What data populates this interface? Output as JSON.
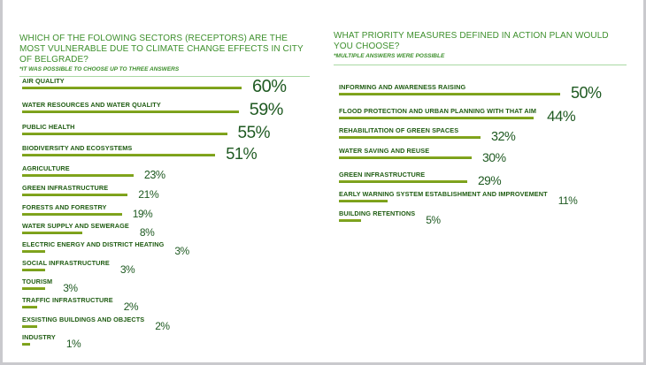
{
  "chart_data": [
    {
      "type": "bar",
      "orientation": "horizontal",
      "title": "WHICH OF THE FOLOWING SECTORS (RECEPTORS) ARE THE MOST VULNERABLE DUE TO CLIMATE CHANGE EFFECTS IN CITY OF BELGRADE?",
      "subtitle": "*IT WAS POSSIBLE TO CHOOSE  UP TO THREE ANSWERS",
      "unit": "%",
      "categories": [
        "AIR QUALITY",
        "WATER RESOURCES AND WATER QUALITY",
        "PUBLIC HEALTH",
        "BIODIVERSITY AND ECOSYSTEMS",
        "AGRICULTURE",
        "GREEN INFRASTRUCTURE",
        "FORESTS AND FORESTRY",
        "WATER SUPPLY AND SEWERAGE",
        "ELECTRIC ENERGY AND DISTRICT HEATING",
        "SOCIAL INFRASTRUCTURE",
        "TOURISM",
        "TRAFFIC INFRASTRUCTURE",
        "EXSISTING BUILDINGS AND OBJECTS",
        "INDUSTRY"
      ],
      "values": [
        60,
        59,
        55,
        51,
        23,
        21,
        19,
        8,
        3,
        3,
        3,
        2,
        2,
        1
      ],
      "labels": [
        "60%",
        "59%",
        "55%",
        "51%",
        "23%",
        "21%",
        "19%",
        "8%",
        "3%",
        "3%",
        "3%",
        "2%",
        "2%",
        "1%"
      ],
      "bar_color": "#6f9a18",
      "text_color": "#1f5c12"
    },
    {
      "type": "bar",
      "orientation": "horizontal",
      "title": "WHAT PRIORITY MEASURES DEFINED IN ACTION PLAN WOULD YOU CHOOSE?",
      "subtitle": "*MULTIPLE ANSWERS WERE POSSIBLE",
      "unit": "%",
      "categories": [
        "INFORMING AND AWARENESS RAISING",
        "FLOOD PROTECTION AND URBAN PLANNING WITH THAT AIM",
        "REHABILITATION OF GREEN SPACES",
        "WATER SAVING AND REUSE",
        "GREEN INFRASTRUCTURE",
        "EARLY WARNING SYSTEM ESTABLISHMENT AND IMPROVEMENT",
        "BUILDING RETENTIONS"
      ],
      "values": [
        50,
        44,
        32,
        30,
        29,
        11,
        5
      ],
      "labels": [
        "50%",
        "44%",
        "32%",
        "30%",
        "29%",
        "11%",
        "5%"
      ],
      "bar_color": "#6f9a18",
      "text_color": "#1f5c12"
    }
  ]
}
